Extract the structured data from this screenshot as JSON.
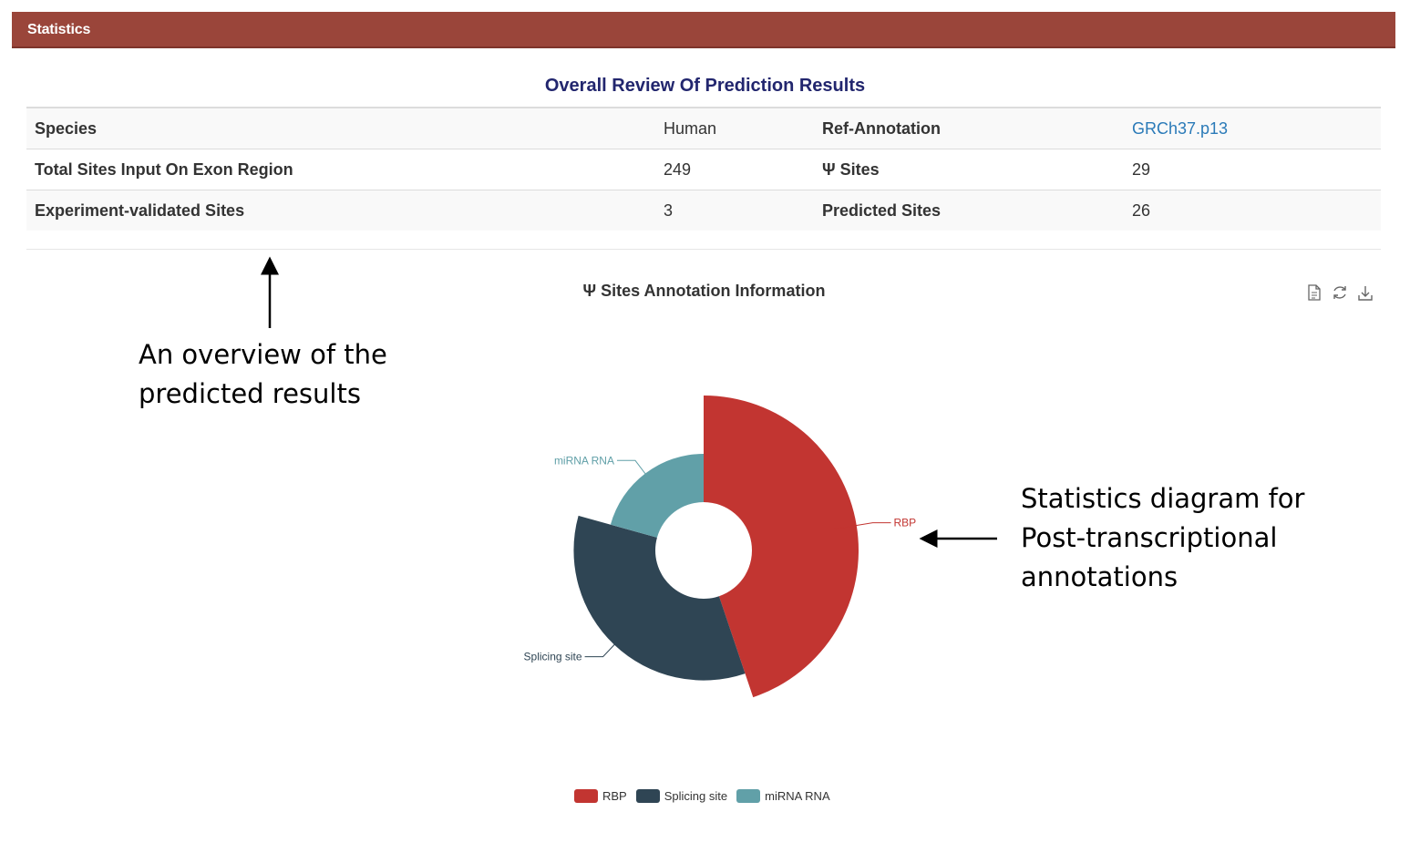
{
  "header": {
    "title": "Statistics"
  },
  "review": {
    "title": "Overall Review Of Prediction Results",
    "rows": [
      [
        "Species",
        "Human",
        "Ref-Annotation",
        "GRCh37.p13"
      ],
      [
        "Total Sites Input On Exon Region",
        "249",
        "Ψ Sites",
        "29"
      ],
      [
        "Experiment-validated Sites",
        "3",
        "Predicted Sites",
        "26"
      ]
    ]
  },
  "toolbox": {
    "icons": [
      "data-view-icon",
      "restore-icon",
      "save-image-icon"
    ]
  },
  "annotations": {
    "overview_line1": "An overview of the",
    "overview_line2": "predicted results",
    "diagram_line1": "Statistics diagram for",
    "diagram_line2": "Post-transcriptional",
    "diagram_line3": "annotations"
  },
  "chart_data": {
    "type": "pie",
    "title": "Ψ Sites Annotation Information",
    "rose_type": "radius",
    "series": [
      {
        "name": "RBP",
        "value": 13,
        "color": "#c23531"
      },
      {
        "name": "Splicing site",
        "value": 10,
        "color": "#2f4554"
      },
      {
        "name": "miRNA RNA",
        "value": 6,
        "color": "#61a0a8"
      }
    ],
    "legend": {
      "position": "bottom",
      "items": [
        "RBP",
        "Splicing site",
        "miRNA RNA"
      ]
    }
  }
}
